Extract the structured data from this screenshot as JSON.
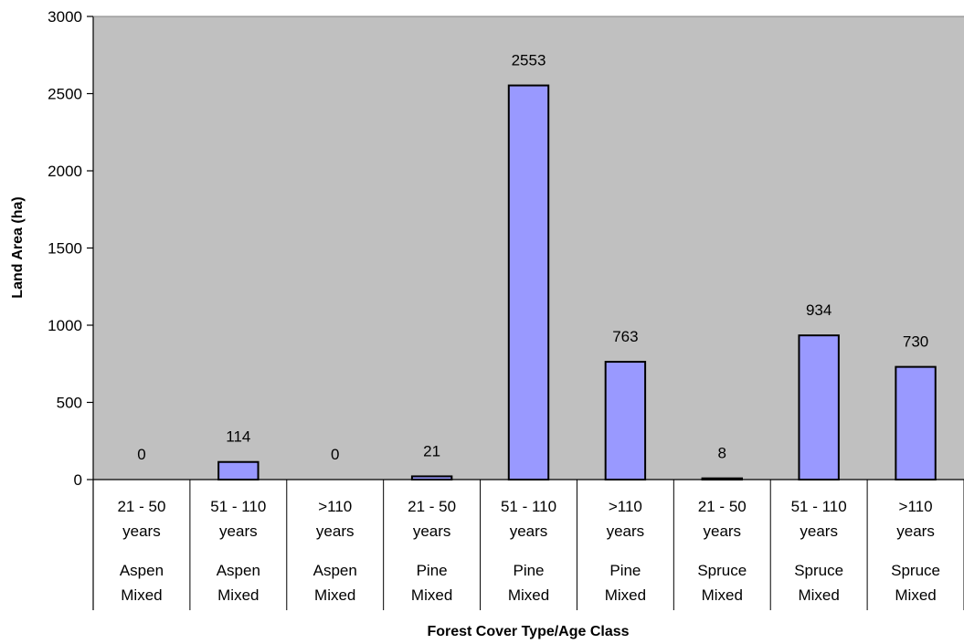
{
  "chart_data": {
    "type": "bar",
    "title": "",
    "xlabel": "Forest Cover Type/Age Class",
    "ylabel": "Land Area (ha)",
    "ylim": [
      0,
      3000
    ],
    "yticks": [
      0,
      500,
      1000,
      1500,
      2000,
      2500,
      3000
    ],
    "grid": false,
    "legend": "none",
    "categories": [
      {
        "age": [
          "21 - 50",
          "years"
        ],
        "type": [
          "Aspen",
          "Mixed"
        ]
      },
      {
        "age": [
          "51 - 110",
          "years"
        ],
        "type": [
          "Aspen",
          "Mixed"
        ]
      },
      {
        "age": [
          ">110",
          "years"
        ],
        "type": [
          "Aspen",
          "Mixed"
        ]
      },
      {
        "age": [
          "21 - 50",
          "years"
        ],
        "type": [
          "Pine",
          "Mixed"
        ]
      },
      {
        "age": [
          "51 - 110",
          "years"
        ],
        "type": [
          "Pine",
          "Mixed"
        ]
      },
      {
        "age": [
          ">110",
          "years"
        ],
        "type": [
          "Pine",
          "Mixed"
        ]
      },
      {
        "age": [
          "21 - 50",
          "years"
        ],
        "type": [
          "Spruce",
          "Mixed"
        ]
      },
      {
        "age": [
          "51 - 110",
          "years"
        ],
        "type": [
          "Spruce",
          "Mixed"
        ]
      },
      {
        "age": [
          ">110",
          "years"
        ],
        "type": [
          "Spruce",
          "Mixed"
        ]
      }
    ],
    "values": [
      0,
      114,
      0,
      21,
      2553,
      763,
      8,
      934,
      730
    ],
    "data_labels": [
      "0",
      "114",
      "0",
      "21",
      "2553",
      "763",
      "8",
      "934",
      "730"
    ],
    "colors": {
      "bar_fill": "#9999ff",
      "bar_stroke": "#000000",
      "plot_background": "#c0c0c0"
    }
  }
}
